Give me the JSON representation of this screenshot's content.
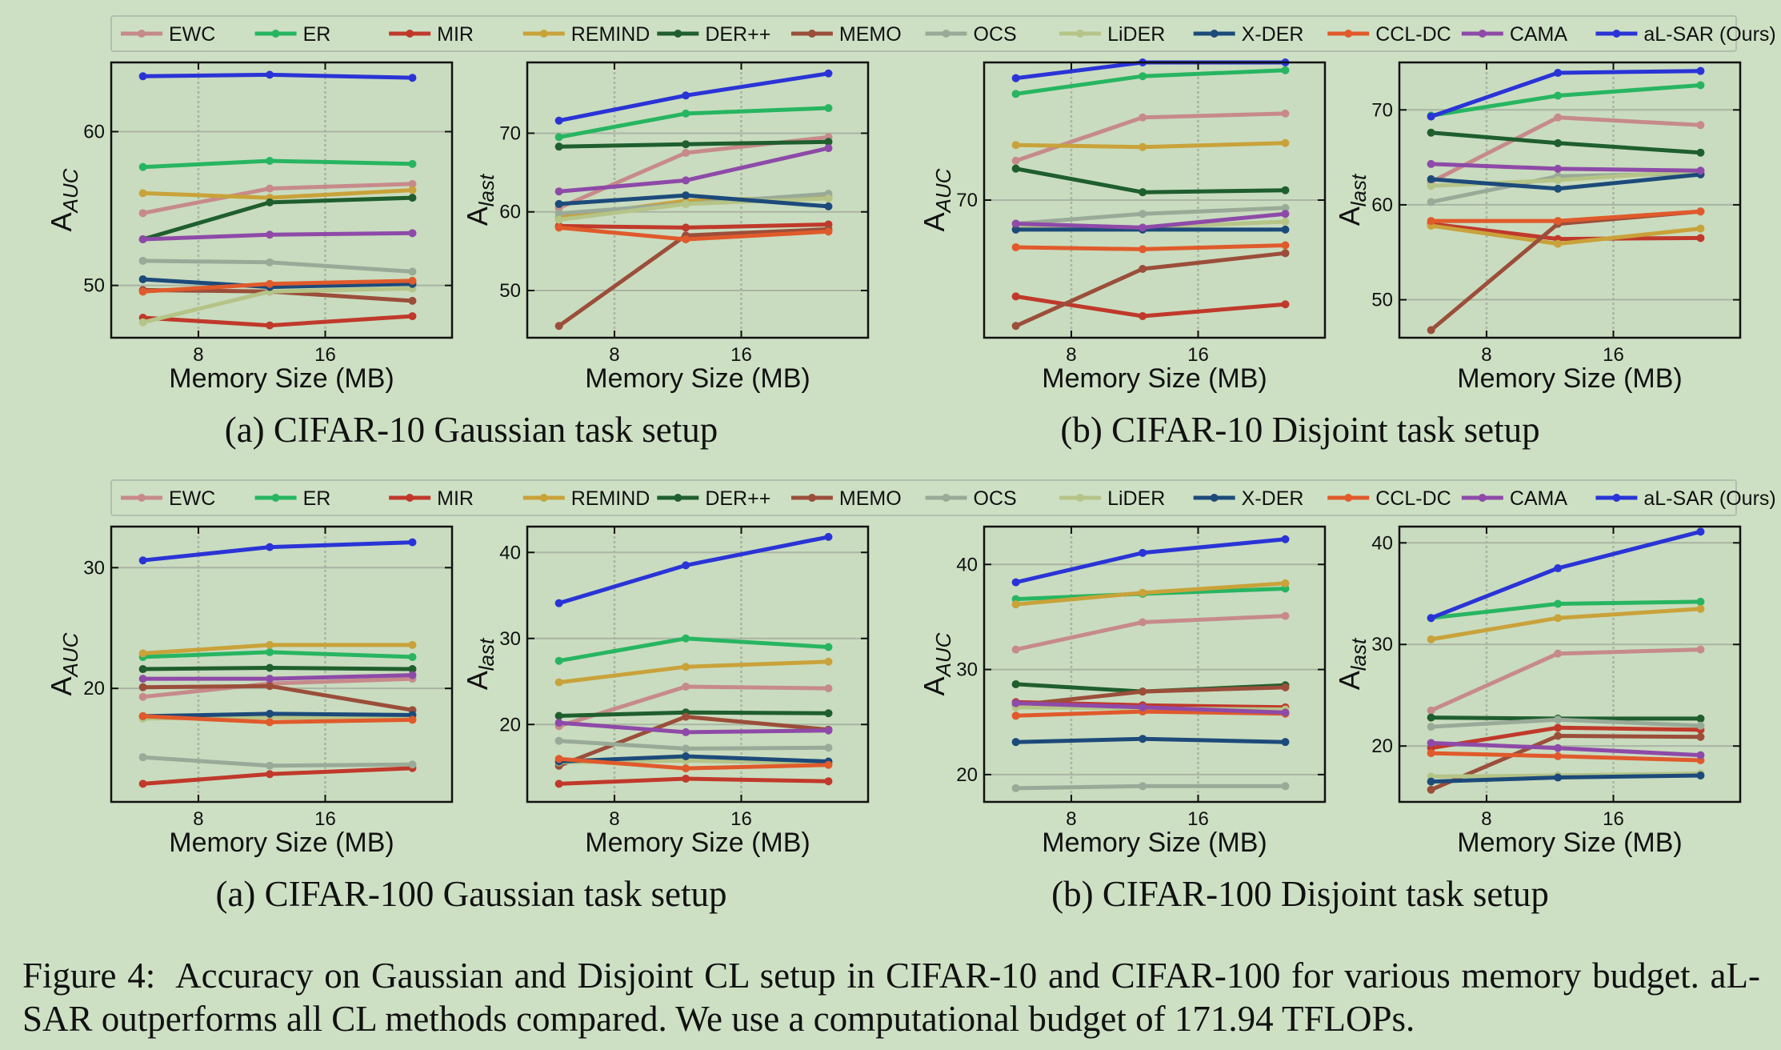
{
  "figure": {
    "caption_label": "Figure 4:",
    "caption_text": "Accuracy on Gaussian and Disjoint CL setup in CIFAR-10 and CIFAR-100 for various memory budget. aL-SAR outperforms all CL methods compared. We use a computational budget of 171.94 TFLOPs."
  },
  "methods": [
    {
      "name": "EWC",
      "color": "#c78a8a"
    },
    {
      "name": "ER",
      "color": "#27b561"
    },
    {
      "name": "MIR",
      "color": "#c0392b"
    },
    {
      "name": "REMIND",
      "color": "#c9a23a"
    },
    {
      "name": "DER++",
      "color": "#1f5e2d"
    },
    {
      "name": "MEMO",
      "color": "#9b4e3a"
    },
    {
      "name": "OCS",
      "color": "#9aaa98"
    },
    {
      "name": "LiDER",
      "color": "#b5c487"
    },
    {
      "name": "X-DER",
      "color": "#1c4a7a"
    },
    {
      "name": "CCL-DC",
      "color": "#e05a2b"
    },
    {
      "name": "CAMA",
      "color": "#8e4aa8"
    },
    {
      "name": "aL-SAR (Ours)",
      "color": "#2a34d6"
    }
  ],
  "rows": [
    {
      "subcaptions": [
        "(a) CIFAR-10 Gaussian task setup",
        "(b) CIFAR-10 Disjoint task setup"
      ]
    },
    {
      "subcaptions": [
        "(a) CIFAR-100 Gaussian task setup",
        "(b) CIFAR-100 Disjoint task setup"
      ]
    }
  ],
  "chart_data": [
    {
      "type": "line",
      "dataset": "CIFAR-10",
      "setup": "Gaussian",
      "xlabel": "Memory Size (MB)",
      "ylabel": "A_AUC",
      "x": [
        4.5,
        12.5,
        21.5
      ],
      "xticks": [
        8,
        16
      ],
      "xlim": [
        2.5,
        24
      ],
      "yticks": [
        50,
        60
      ],
      "ylim": [
        46.6,
        64.5
      ],
      "series": [
        {
          "name": "EWC",
          "values": [
            54.7,
            56.3,
            56.6
          ]
        },
        {
          "name": "ER",
          "values": [
            57.7,
            58.1,
            57.9
          ]
        },
        {
          "name": "MIR",
          "values": [
            47.9,
            47.4,
            48.0
          ]
        },
        {
          "name": "REMIND",
          "values": [
            56.0,
            55.7,
            56.2
          ]
        },
        {
          "name": "DER++",
          "values": [
            53.0,
            55.4,
            55.7
          ]
        },
        {
          "name": "MEMO",
          "values": [
            49.7,
            49.6,
            49.0
          ]
        },
        {
          "name": "OCS",
          "values": [
            51.6,
            51.5,
            50.9
          ]
        },
        {
          "name": "LiDER",
          "values": [
            47.6,
            49.6,
            49.8
          ]
        },
        {
          "name": "X-DER",
          "values": [
            50.4,
            49.9,
            50.1
          ]
        },
        {
          "name": "CCL-DC",
          "values": [
            49.6,
            50.1,
            50.3
          ]
        },
        {
          "name": "CAMA",
          "values": [
            53.0,
            53.3,
            53.4
          ]
        },
        {
          "name": "aL-SAR (Ours)",
          "values": [
            63.6,
            63.7,
            63.5
          ]
        }
      ]
    },
    {
      "type": "line",
      "dataset": "CIFAR-10",
      "setup": "Gaussian",
      "xlabel": "Memory Size (MB)",
      "ylabel": "A_last",
      "x": [
        4.5,
        12.5,
        21.5
      ],
      "xticks": [
        8,
        16
      ],
      "xlim": [
        2.5,
        24
      ],
      "yticks": [
        50,
        60,
        70
      ],
      "ylim": [
        44.0,
        79.0
      ],
      "series": [
        {
          "name": "EWC",
          "values": [
            60.5,
            67.5,
            69.5
          ]
        },
        {
          "name": "ER",
          "values": [
            69.5,
            72.5,
            73.2
          ]
        },
        {
          "name": "MIR",
          "values": [
            58.2,
            58.0,
            58.4
          ]
        },
        {
          "name": "REMIND",
          "values": [
            59.3,
            61.4,
            61.9
          ]
        },
        {
          "name": "DER++",
          "values": [
            68.3,
            68.6,
            68.9
          ]
        },
        {
          "name": "MEMO",
          "values": [
            45.5,
            57.0,
            57.8
          ]
        },
        {
          "name": "OCS",
          "values": [
            59.8,
            61.0,
            62.3
          ]
        },
        {
          "name": "LiDER",
          "values": [
            59.0,
            61.0,
            61.7
          ]
        },
        {
          "name": "X-DER",
          "values": [
            61.0,
            62.1,
            60.7
          ]
        },
        {
          "name": "CCL-DC",
          "values": [
            58.0,
            56.5,
            57.5
          ]
        },
        {
          "name": "CAMA",
          "values": [
            62.6,
            64.0,
            68.1
          ]
        },
        {
          "name": "aL-SAR (Ours)",
          "values": [
            71.6,
            74.8,
            77.6
          ]
        }
      ]
    },
    {
      "type": "line",
      "dataset": "CIFAR-10",
      "setup": "Disjoint",
      "xlabel": "Memory Size (MB)",
      "ylabel": "A_AUC",
      "x": [
        4.5,
        12.5,
        21.5
      ],
      "xticks": [
        8,
        16
      ],
      "xlim": [
        2.5,
        24
      ],
      "yticks": [
        70
      ],
      "ylim": [
        63.0,
        77.0
      ],
      "series": [
        {
          "name": "EWC",
          "values": [
            72.0,
            74.2,
            74.4
          ]
        },
        {
          "name": "ER",
          "values": [
            75.4,
            76.3,
            76.6
          ]
        },
        {
          "name": "MIR",
          "values": [
            65.1,
            64.1,
            64.7
          ]
        },
        {
          "name": "REMIND",
          "values": [
            72.8,
            72.7,
            72.9
          ]
        },
        {
          "name": "DER++",
          "values": [
            71.6,
            70.4,
            70.5
          ]
        },
        {
          "name": "MEMO",
          "values": [
            63.6,
            66.5,
            67.3
          ]
        },
        {
          "name": "OCS",
          "values": [
            68.8,
            69.3,
            69.6
          ]
        },
        {
          "name": "LiDER",
          "values": [
            68.6,
            68.6,
            68.9
          ]
        },
        {
          "name": "X-DER",
          "values": [
            68.5,
            68.5,
            68.5
          ]
        },
        {
          "name": "CCL-DC",
          "values": [
            67.6,
            67.5,
            67.7
          ]
        },
        {
          "name": "CAMA",
          "values": [
            68.8,
            68.6,
            69.3
          ]
        },
        {
          "name": "aL-SAR (Ours)",
          "values": [
            76.2,
            77.0,
            77.0
          ]
        }
      ]
    },
    {
      "type": "line",
      "dataset": "CIFAR-10",
      "setup": "Disjoint",
      "xlabel": "Memory Size (MB)",
      "ylabel": "A_last",
      "x": [
        4.5,
        12.5,
        21.5
      ],
      "xticks": [
        8,
        16
      ],
      "xlim": [
        2.5,
        24
      ],
      "yticks": [
        50,
        60,
        70
      ],
      "ylim": [
        46.0,
        75.0
      ],
      "series": [
        {
          "name": "EWC",
          "values": [
            62.4,
            69.2,
            68.4
          ]
        },
        {
          "name": "ER",
          "values": [
            69.4,
            71.5,
            72.6
          ]
        },
        {
          "name": "MIR",
          "values": [
            58.0,
            56.4,
            56.5
          ]
        },
        {
          "name": "REMIND",
          "values": [
            57.8,
            55.9,
            57.5
          ]
        },
        {
          "name": "DER++",
          "values": [
            67.6,
            66.5,
            65.5
          ]
        },
        {
          "name": "MEMO",
          "values": [
            46.8,
            58.0,
            59.3
          ]
        },
        {
          "name": "OCS",
          "values": [
            60.3,
            63.0,
            63.3
          ]
        },
        {
          "name": "LiDER",
          "values": [
            62.0,
            62.6,
            63.6
          ]
        },
        {
          "name": "X-DER",
          "values": [
            62.7,
            61.7,
            63.2
          ]
        },
        {
          "name": "CCL-DC",
          "values": [
            58.3,
            58.3,
            59.3
          ]
        },
        {
          "name": "CAMA",
          "values": [
            64.3,
            63.8,
            63.6
          ]
        },
        {
          "name": "aL-SAR (Ours)",
          "values": [
            69.3,
            73.9,
            74.1
          ]
        }
      ]
    },
    {
      "type": "line",
      "dataset": "CIFAR-100",
      "setup": "Gaussian",
      "xlabel": "Memory Size (MB)",
      "ylabel": "A_AUC",
      "x": [
        4.5,
        12.5,
        21.5
      ],
      "xticks": [
        8,
        16
      ],
      "xlim": [
        2.5,
        24
      ],
      "yticks": [
        20,
        30
      ],
      "ylim": [
        10.6,
        33.4
      ],
      "series": [
        {
          "name": "EWC",
          "values": [
            19.3,
            20.4,
            20.8
          ]
        },
        {
          "name": "ER",
          "values": [
            22.6,
            23.0,
            22.6
          ]
        },
        {
          "name": "MIR",
          "values": [
            12.1,
            12.9,
            13.4
          ]
        },
        {
          "name": "REMIND",
          "values": [
            22.9,
            23.6,
            23.6
          ]
        },
        {
          "name": "DER++",
          "values": [
            21.6,
            21.7,
            21.6
          ]
        },
        {
          "name": "MEMO",
          "values": [
            20.1,
            20.2,
            18.2
          ]
        },
        {
          "name": "OCS",
          "values": [
            14.3,
            13.6,
            13.7
          ]
        },
        {
          "name": "LiDER",
          "values": [
            17.5,
            17.6,
            17.5
          ]
        },
        {
          "name": "X-DER",
          "values": [
            17.7,
            17.9,
            17.8
          ]
        },
        {
          "name": "CCL-DC",
          "values": [
            17.7,
            17.2,
            17.4
          ]
        },
        {
          "name": "CAMA",
          "values": [
            20.8,
            20.8,
            21.1
          ]
        },
        {
          "name": "aL-SAR (Ours)",
          "values": [
            30.6,
            31.7,
            32.1
          ]
        }
      ]
    },
    {
      "type": "line",
      "dataset": "CIFAR-100",
      "setup": "Gaussian",
      "xlabel": "Memory Size (MB)",
      "ylabel": "A_last",
      "x": [
        4.5,
        12.5,
        21.5
      ],
      "xticks": [
        8,
        16
      ],
      "xlim": [
        2.5,
        24
      ],
      "yticks": [
        20,
        30,
        40
      ],
      "ylim": [
        11.0,
        43.0
      ],
      "series": [
        {
          "name": "EWC",
          "values": [
            19.8,
            24.4,
            24.2
          ]
        },
        {
          "name": "ER",
          "values": [
            27.4,
            30.0,
            29.0
          ]
        },
        {
          "name": "MIR",
          "values": [
            13.1,
            13.7,
            13.4
          ]
        },
        {
          "name": "REMIND",
          "values": [
            24.9,
            26.7,
            27.3
          ]
        },
        {
          "name": "DER++",
          "values": [
            21.0,
            21.4,
            21.3
          ]
        },
        {
          "name": "MEMO",
          "values": [
            15.2,
            20.9,
            19.4
          ]
        },
        {
          "name": "OCS",
          "values": [
            18.1,
            17.2,
            17.3
          ]
        },
        {
          "name": "LiDER",
          "values": [
            15.6,
            15.8,
            15.5
          ]
        },
        {
          "name": "X-DER",
          "values": [
            15.7,
            16.3,
            15.7
          ]
        },
        {
          "name": "CCL-DC",
          "values": [
            16.0,
            14.9,
            15.3
          ]
        },
        {
          "name": "CAMA",
          "values": [
            20.2,
            19.1,
            19.3
          ]
        },
        {
          "name": "aL-SAR (Ours)",
          "values": [
            34.1,
            38.5,
            41.8
          ]
        }
      ]
    },
    {
      "type": "line",
      "dataset": "CIFAR-100",
      "setup": "Disjoint",
      "xlabel": "Memory Size (MB)",
      "ylabel": "A_AUC",
      "x": [
        4.5,
        12.5,
        21.5
      ],
      "xticks": [
        8,
        16
      ],
      "xlim": [
        2.5,
        24
      ],
      "yticks": [
        20,
        30,
        40
      ],
      "ylim": [
        17.4,
        43.6
      ],
      "series": [
        {
          "name": "EWC",
          "values": [
            31.9,
            34.5,
            35.1
          ]
        },
        {
          "name": "ER",
          "values": [
            36.7,
            37.2,
            37.7
          ]
        },
        {
          "name": "MIR",
          "values": [
            26.9,
            26.6,
            26.4
          ]
        },
        {
          "name": "REMIND",
          "values": [
            36.2,
            37.3,
            38.2
          ]
        },
        {
          "name": "DER++",
          "values": [
            28.6,
            27.9,
            28.5
          ]
        },
        {
          "name": "MEMO",
          "values": [
            26.6,
            27.9,
            28.3
          ]
        },
        {
          "name": "OCS",
          "values": [
            18.7,
            18.9,
            18.9
          ]
        },
        {
          "name": "LiDER",
          "values": [
            26.4,
            26.3,
            26.2
          ]
        },
        {
          "name": "X-DER",
          "values": [
            23.1,
            23.4,
            23.1
          ]
        },
        {
          "name": "CCL-DC",
          "values": [
            25.6,
            26.0,
            25.8
          ]
        },
        {
          "name": "CAMA",
          "values": [
            26.8,
            26.4,
            25.9
          ]
        },
        {
          "name": "aL-SAR (Ours)",
          "values": [
            38.3,
            41.1,
            42.4
          ]
        }
      ]
    },
    {
      "type": "line",
      "dataset": "CIFAR-100",
      "setup": "Disjoint",
      "xlabel": "Memory Size (MB)",
      "ylabel": "A_last",
      "x": [
        4.5,
        12.5,
        21.5
      ],
      "xticks": [
        8,
        16
      ],
      "xlim": [
        2.5,
        24
      ],
      "yticks": [
        20,
        30,
        40
      ],
      "ylim": [
        14.5,
        41.6
      ],
      "series": [
        {
          "name": "EWC",
          "values": [
            23.5,
            29.1,
            29.5
          ]
        },
        {
          "name": "ER",
          "values": [
            32.6,
            34.0,
            34.2
          ]
        },
        {
          "name": "MIR",
          "values": [
            19.8,
            21.8,
            21.6
          ]
        },
        {
          "name": "REMIND",
          "values": [
            30.5,
            32.6,
            33.5
          ]
        },
        {
          "name": "DER++",
          "values": [
            22.8,
            22.7,
            22.7
          ]
        },
        {
          "name": "MEMO",
          "values": [
            15.7,
            21.0,
            20.9
          ]
        },
        {
          "name": "OCS",
          "values": [
            21.9,
            22.6,
            22.0
          ]
        },
        {
          "name": "LiDER",
          "values": [
            17.0,
            17.1,
            17.3
          ]
        },
        {
          "name": "X-DER",
          "values": [
            16.5,
            16.9,
            17.1
          ]
        },
        {
          "name": "CCL-DC",
          "values": [
            19.3,
            19.0,
            18.6
          ]
        },
        {
          "name": "CAMA",
          "values": [
            20.3,
            19.8,
            19.1
          ]
        },
        {
          "name": "aL-SAR (Ours)",
          "values": [
            32.6,
            37.5,
            41.1
          ]
        }
      ]
    }
  ]
}
